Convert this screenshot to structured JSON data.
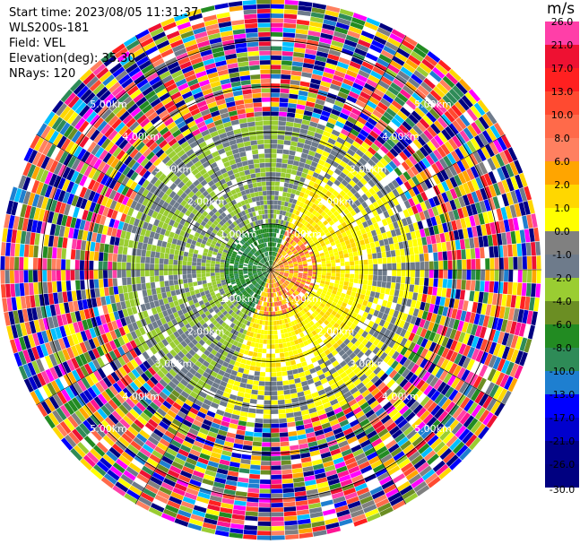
{
  "info": {
    "start_time": "Start time: 2023/08/05 11:31:37",
    "instrument": "WLS200s-181",
    "field": "Field: VEL",
    "elevation": "Elevation(deg): 35.30",
    "nrays": "NRays: 120"
  },
  "colorbar": {
    "unit": "m/s",
    "bins": [
      {
        "label": "26.0",
        "color": "#ff3fa8"
      },
      {
        "label": "21.0",
        "color": "#ee1132"
      },
      {
        "label": "17.0",
        "color": "#ff2020"
      },
      {
        "label": "13.0",
        "color": "#ff4a30"
      },
      {
        "label": "10.0",
        "color": "#ff6a4a"
      },
      {
        "label": "8.0",
        "color": "#ff8060"
      },
      {
        "label": "6.0",
        "color": "#ffa500"
      },
      {
        "label": "2.0",
        "color": "#ffd700"
      },
      {
        "label": "1.0",
        "color": "#ffff00"
      },
      {
        "label": "0.0",
        "color": "#808080"
      },
      {
        "label": "-1.0",
        "color": "#6e7b8b"
      },
      {
        "label": "-2.0",
        "color": "#9acd32"
      },
      {
        "label": "-4.0",
        "color": "#6b8e23"
      },
      {
        "label": "-6.0",
        "color": "#228b22"
      },
      {
        "label": "-8.0",
        "color": "#2e8b57"
      },
      {
        "label": "-10.0",
        "color": "#1e7fd0"
      },
      {
        "label": "-13.0",
        "color": "#0000ff"
      },
      {
        "label": "-17.0",
        "color": "#0000cd"
      },
      {
        "label": "-21.0",
        "color": "#00008b"
      },
      {
        "label": "-26.0",
        "color": "#000080"
      }
    ],
    "bottom_label": "-30.0"
  },
  "range_rings": {
    "labels": [
      "1.00km",
      "2.00km",
      "3.00km",
      "4.00km",
      "5.00km"
    ],
    "spokes_deg": [
      0,
      30,
      60,
      90,
      120,
      150,
      180,
      210,
      240,
      270,
      300,
      330
    ]
  },
  "ppi_data": {
    "field": "VEL",
    "max_range_km": 5.9,
    "nrays": 120
  }
}
